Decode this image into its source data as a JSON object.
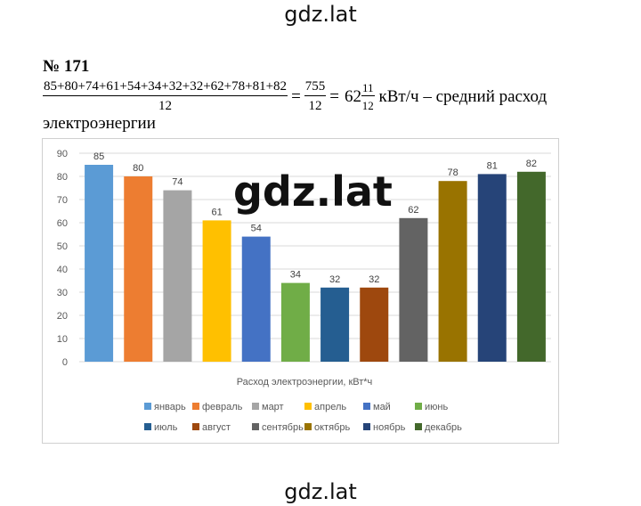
{
  "watermark": "gdz.lat",
  "task": {
    "number": "№ 171"
  },
  "equation": {
    "sum_numerator": "85+80+74+61+54+34+32+32+62+78+81+82",
    "sum_denominator": "12",
    "equals1": "=",
    "frac_numerator": "755",
    "frac_denominator": "12",
    "equals2": "=",
    "mixed_integer": "62",
    "mixed_numerator": "11",
    "mixed_denominator": "12",
    "unit_text": "кВт/ч – средний расход",
    "line2": "электроэнергии"
  },
  "chart_data": {
    "type": "bar",
    "categories": [
      "январь",
      "февраль",
      "март",
      "апрель",
      "май",
      "июнь",
      "июль",
      "август",
      "сентябрь",
      "октябрь",
      "ноябрь",
      "декабрь"
    ],
    "values": [
      85,
      80,
      74,
      61,
      54,
      34,
      32,
      32,
      62,
      78,
      81,
      82
    ],
    "colors": [
      "#5b9bd5",
      "#ed7d31",
      "#a5a5a5",
      "#ffc000",
      "#4472c4",
      "#70ad47",
      "#255e91",
      "#9e480e",
      "#636363",
      "#997300",
      "#264478",
      "#43682b"
    ],
    "xlabel": "Расход электроэнергии, кВт*ч",
    "ylim": [
      0,
      90
    ],
    "yticks": [
      0,
      10,
      20,
      30,
      40,
      50,
      60,
      70,
      80,
      90
    ],
    "grid": true,
    "legend_position": "bottom"
  }
}
